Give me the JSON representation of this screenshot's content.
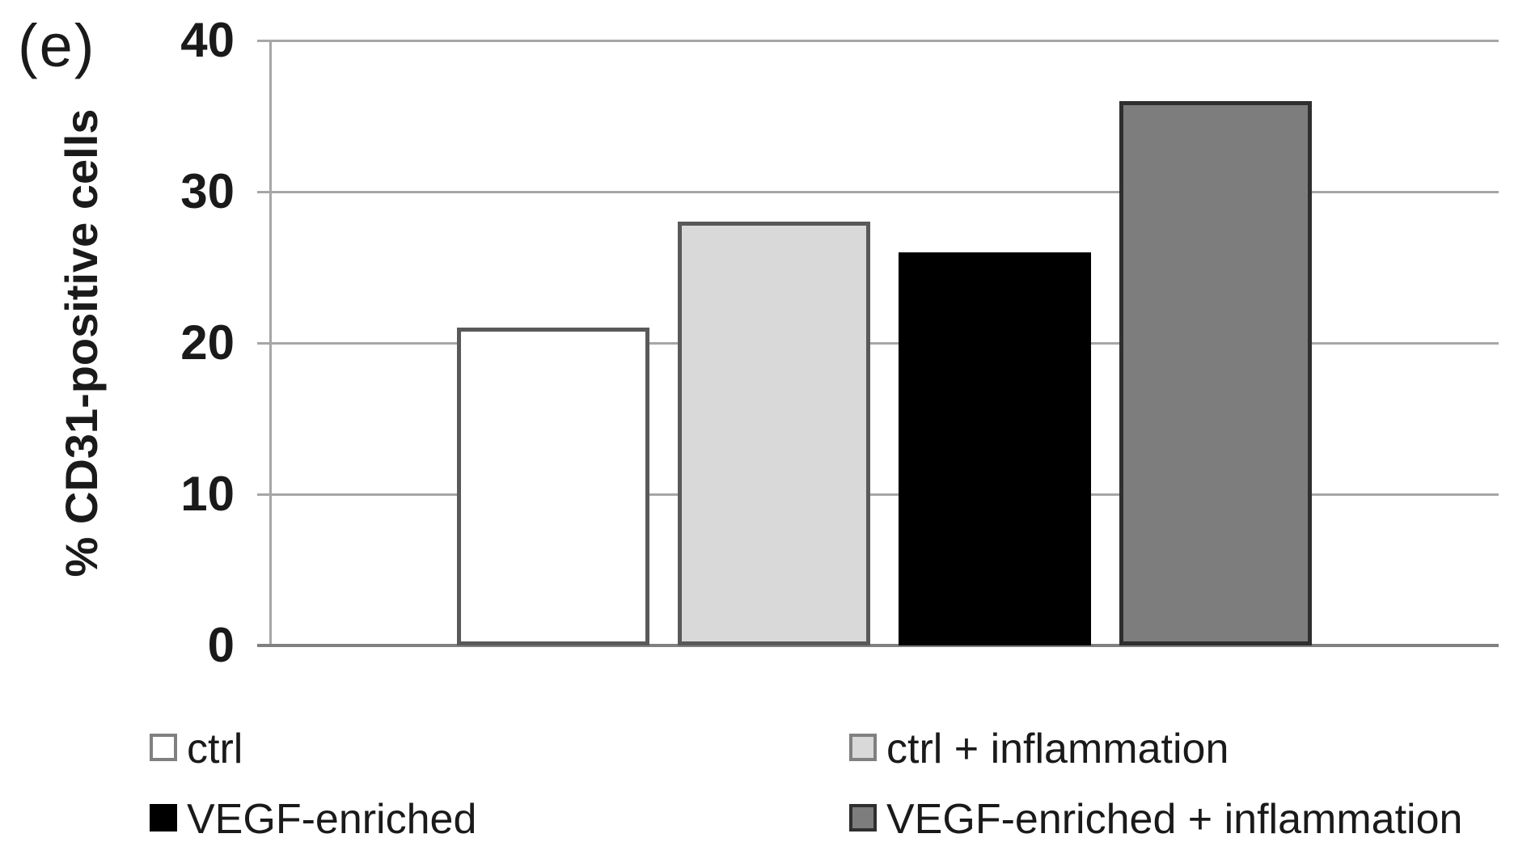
{
  "figure": {
    "panel_label": "(e)"
  },
  "chart_data": {
    "type": "bar",
    "title": "",
    "xlabel": "",
    "ylabel": "% CD31-positive cells",
    "ylim": [
      0,
      40
    ],
    "yticks": [
      0,
      10,
      20,
      30,
      40
    ],
    "grid": "horizontal gridlines at every y tick",
    "legend_position": "bottom, two columns",
    "categories": [
      "ctrl",
      "ctrl + inflammation",
      "VEGF-enriched",
      "VEGF-enriched + inflammation"
    ],
    "values": [
      21,
      28,
      26,
      36
    ],
    "bar_styles": [
      {
        "fill": "#ffffff",
        "border": "#595959"
      },
      {
        "fill": "#d9d9d9",
        "border": "#595959"
      },
      {
        "fill": "#000000",
        "border": "#000000"
      },
      {
        "fill": "#7d7d7d",
        "border": "#2f2f2f"
      }
    ],
    "colors": {
      "gridline": "#a6a6a6",
      "baseline": "#808080",
      "text": "#1a1a1a"
    }
  }
}
